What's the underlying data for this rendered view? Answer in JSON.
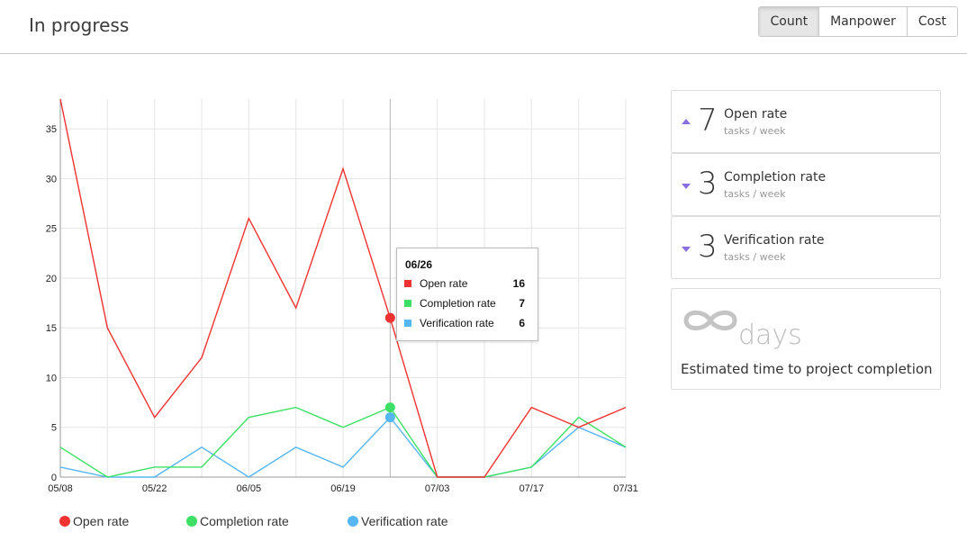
{
  "page": {
    "title": "In progress"
  },
  "toolbar": {
    "buttons": [
      {
        "label": "Count",
        "active": true
      },
      {
        "label": "Manpower",
        "active": false
      },
      {
        "label": "Cost",
        "active": false
      }
    ]
  },
  "chart_data": {
    "type": "line",
    "x": [
      "05/08",
      "05/15",
      "05/22",
      "05/29",
      "06/05",
      "06/12",
      "06/19",
      "06/26",
      "07/03",
      "07/10",
      "07/17",
      "07/24",
      "07/31"
    ],
    "x_tick_labels": [
      "05/08",
      "05/22",
      "06/05",
      "06/19",
      "07/03",
      "07/17",
      "07/31"
    ],
    "series": [
      {
        "name": "Open rate",
        "color": "#f03232",
        "values": [
          38,
          15,
          6,
          12,
          26,
          17,
          31,
          16,
          0,
          0,
          7,
          5,
          7
        ]
      },
      {
        "name": "Completion rate",
        "color": "#3de065",
        "values": [
          3,
          0,
          1,
          1,
          6,
          7,
          5,
          7,
          0,
          0,
          1,
          6,
          3
        ]
      },
      {
        "name": "Verification rate",
        "color": "#56b6f2",
        "values": [
          1,
          0,
          0,
          3,
          0,
          3,
          1,
          6,
          0,
          0,
          1,
          5,
          3
        ]
      }
    ],
    "ylim": [
      0,
      38
    ],
    "y_ticks": [
      0,
      5,
      10,
      15,
      20,
      25,
      30,
      35
    ],
    "grid": true,
    "legend": "bottom",
    "hover_index": 7
  },
  "tooltip": {
    "title": "06/26",
    "rows": [
      {
        "label": "Open rate",
        "value": "16",
        "color": "#f03232"
      },
      {
        "label": "Completion rate",
        "value": "7",
        "color": "#3de065"
      },
      {
        "label": "Verification rate",
        "value": "6",
        "color": "#56b6f2"
      }
    ]
  },
  "legend": [
    {
      "label": "Open rate",
      "color": "#f03232"
    },
    {
      "label": "Completion rate",
      "color": "#3de065"
    },
    {
      "label": "Verification rate",
      "color": "#56b6f2"
    }
  ],
  "stats": [
    {
      "value": "7",
      "label": "Open rate",
      "unit": "tasks / week",
      "trend": "up"
    },
    {
      "value": "3",
      "label": "Completion rate",
      "unit": "tasks / week",
      "trend": "down"
    },
    {
      "value": "3",
      "label": "Verification rate",
      "unit": "tasks / week",
      "trend": "down"
    }
  ],
  "estimate": {
    "icon": "infinity-icon",
    "unit": "days",
    "label": "Estimated time to project completion"
  },
  "colors": {
    "accent_arrow": "#8a6ee0",
    "grid": "#e5e5e5"
  }
}
